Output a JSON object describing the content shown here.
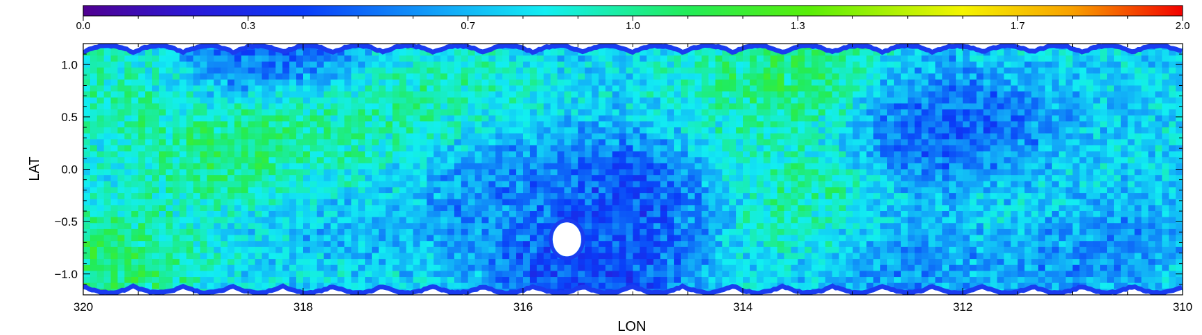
{
  "chart_data": {
    "type": "heatmap",
    "title": "",
    "xlabel": "LON",
    "ylabel": "LAT",
    "xlim": [
      320,
      310
    ],
    "ylim": [
      -1.2,
      1.2
    ],
    "x_ticks": [
      320,
      318,
      316,
      314,
      312,
      310
    ],
    "x_tick_labels": [
      "320",
      "318",
      "316",
      "314",
      "312",
      "310"
    ],
    "y_ticks": [
      1.0,
      0.5,
      0.0,
      -0.5,
      -1.0
    ],
    "y_tick_labels": [
      "1.0",
      "0.5",
      "0.0",
      "−0.5",
      "−1.0"
    ],
    "colorbar": {
      "range": [
        0.0,
        2.0
      ],
      "ticks": [
        0.0,
        0.3,
        0.7,
        1.0,
        1.3,
        1.7,
        2.0
      ],
      "tick_labels": [
        "0.0",
        "0.3",
        "0.7",
        "1.0",
        "1.3",
        "1.7",
        "2.0"
      ],
      "colormap": "rainbow (violet-blue-cyan-green-yellow-red)"
    },
    "grid": false,
    "masked_region": {
      "lon": 315.6,
      "lat": -0.67,
      "radius_deg": 0.13
    },
    "features": [
      {
        "lon": 318.5,
        "lat": 0.25,
        "value": 1.2
      },
      {
        "lon": 318.0,
        "lat": 0.2,
        "value": 1.15
      },
      {
        "lon": 317.5,
        "lat": 0.1,
        "value": 1.05
      },
      {
        "lon": 313.6,
        "lat": 0.9,
        "value": 1.15
      },
      {
        "lon": 313.4,
        "lat": -0.3,
        "value": 1.05
      },
      {
        "lon": 311.5,
        "lat": -0.3,
        "value": 1.05
      },
      {
        "lon": 319.8,
        "lat": -0.9,
        "value": 1.15
      },
      {
        "lon": 319.7,
        "lat": 0.7,
        "value": 1.0
      },
      {
        "lon": 314.9,
        "lat": -0.2,
        "value": 0.35
      },
      {
        "lon": 315.4,
        "lat": -0.95,
        "value": 0.3
      },
      {
        "lon": 311.9,
        "lat": 0.1,
        "value": 0.4
      },
      {
        "lon": 312.2,
        "lat": 0.4,
        "value": 0.45
      },
      {
        "lon": 311.1,
        "lat": -0.6,
        "value": 0.45
      },
      {
        "lon": 316.3,
        "lat": -0.1,
        "value": 0.5
      },
      {
        "lon": 318.4,
        "lat": 1.0,
        "value": 0.4
      },
      {
        "lon": 317.7,
        "lat": -0.1,
        "value": 0.5
      },
      {
        "lon": 312.5,
        "lat": -0.8,
        "value": 0.55
      },
      {
        "lon": 316.8,
        "lat": 0.6,
        "value": 1.0
      },
      {
        "lon": 314.0,
        "lat": 0.3,
        "value": 0.95
      }
    ]
  }
}
